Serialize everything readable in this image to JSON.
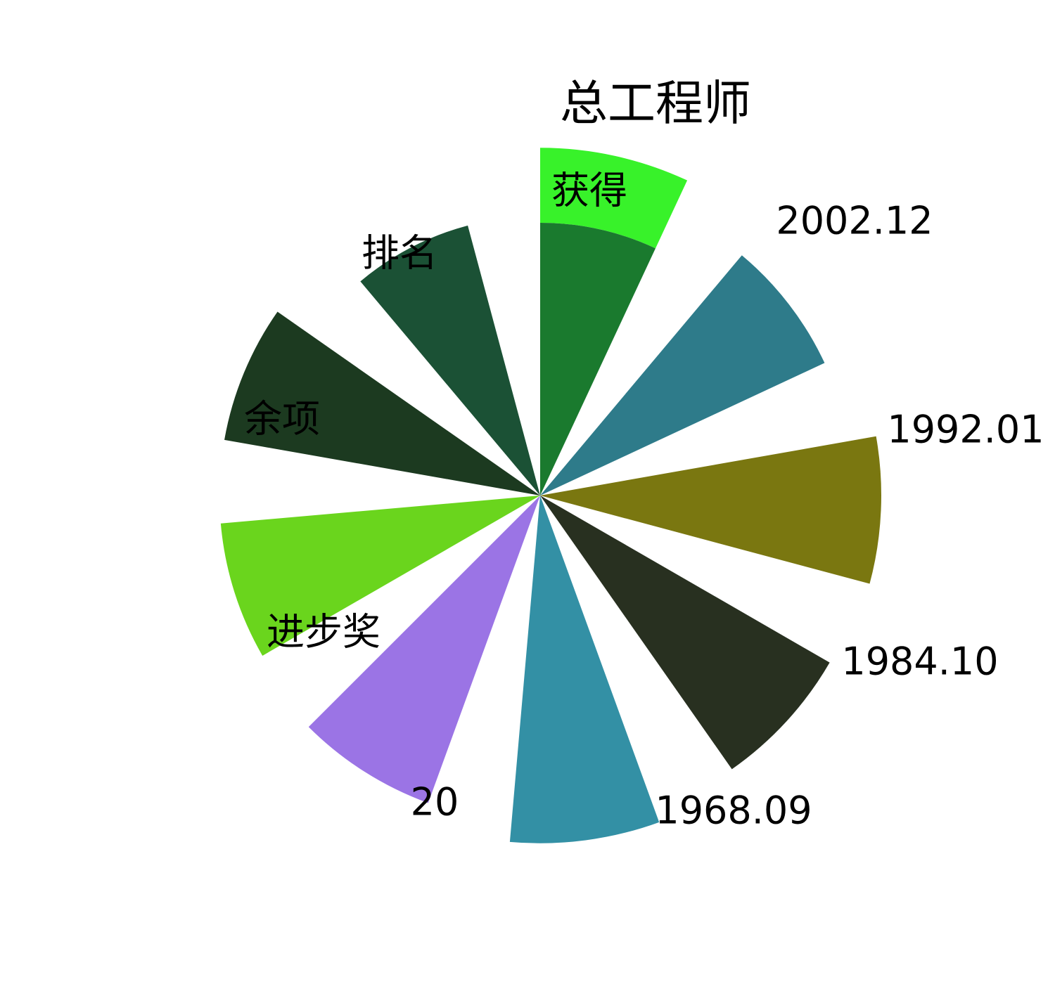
{
  "chart_data": {
    "type": "polar-bar",
    "title": "",
    "slices": [
      {
        "label": "总工程师",
        "value": 10.2,
        "inner_value": 8.0,
        "color": "#1a7a2e",
        "inner_color": "#38f22a"
      },
      {
        "label": "2002.12",
        "value": 9.2,
        "color": "#2e7b8a"
      },
      {
        "label": "1992.01",
        "value": 10.0,
        "color": "#7a7710"
      },
      {
        "label": "1984.10",
        "value": 9.8,
        "color": "#283020"
      },
      {
        "label": "1968.09",
        "value": 10.2,
        "color": "#3390a5"
      },
      {
        "label": "20",
        "value": 9.6,
        "color": "#9b74e5"
      },
      {
        "label": "进步奖",
        "value": 9.4,
        "color": "#6ad51d"
      },
      {
        "label": "余项",
        "value": 9.4,
        "color": "#1c3a20"
      },
      {
        "label": "排名",
        "value": 8.2,
        "color": "#1b5135"
      }
    ],
    "inner_labels": [
      {
        "label": "获得",
        "slice": 0
      }
    ],
    "rlim": [
      0,
      10.5
    ]
  }
}
